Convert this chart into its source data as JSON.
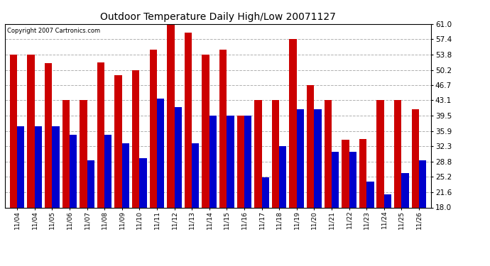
{
  "title": "Outdoor Temperature Daily High/Low 20071127",
  "copyright": "Copyright 2007 Cartronics.com",
  "bar_color_high": "#cc0000",
  "bar_color_low": "#0000cc",
  "background_color": "#ffffff",
  "plot_bg_color": "#ffffff",
  "grid_color": "#b0b0b0",
  "ylim": [
    18.0,
    61.0
  ],
  "yticks": [
    18.0,
    21.6,
    25.2,
    28.8,
    32.3,
    35.9,
    39.5,
    43.1,
    46.7,
    50.2,
    53.8,
    57.4,
    61.0
  ],
  "categories": [
    "11/04",
    "11/04",
    "11/05",
    "11/06",
    "11/07",
    "11/08",
    "11/09",
    "11/10",
    "11/11",
    "11/12",
    "11/13",
    "11/14",
    "11/15",
    "11/16",
    "11/17",
    "11/18",
    "11/19",
    "11/20",
    "11/21",
    "11/22",
    "11/23",
    "11/24",
    "11/25",
    "11/26"
  ],
  "highs": [
    53.8,
    53.8,
    51.8,
    43.1,
    43.1,
    52.0,
    49.0,
    50.2,
    55.0,
    61.0,
    59.0,
    53.8,
    55.0,
    39.5,
    43.1,
    43.1,
    57.4,
    46.7,
    43.1,
    33.8,
    34.0,
    43.1,
    43.1,
    41.0
  ],
  "lows": [
    37.0,
    37.0,
    37.0,
    35.0,
    29.0,
    35.0,
    33.0,
    29.5,
    43.5,
    41.5,
    33.0,
    39.5,
    39.5,
    39.5,
    25.0,
    32.3,
    41.0,
    41.0,
    31.0,
    31.0,
    24.0,
    21.0,
    26.0,
    29.0
  ]
}
